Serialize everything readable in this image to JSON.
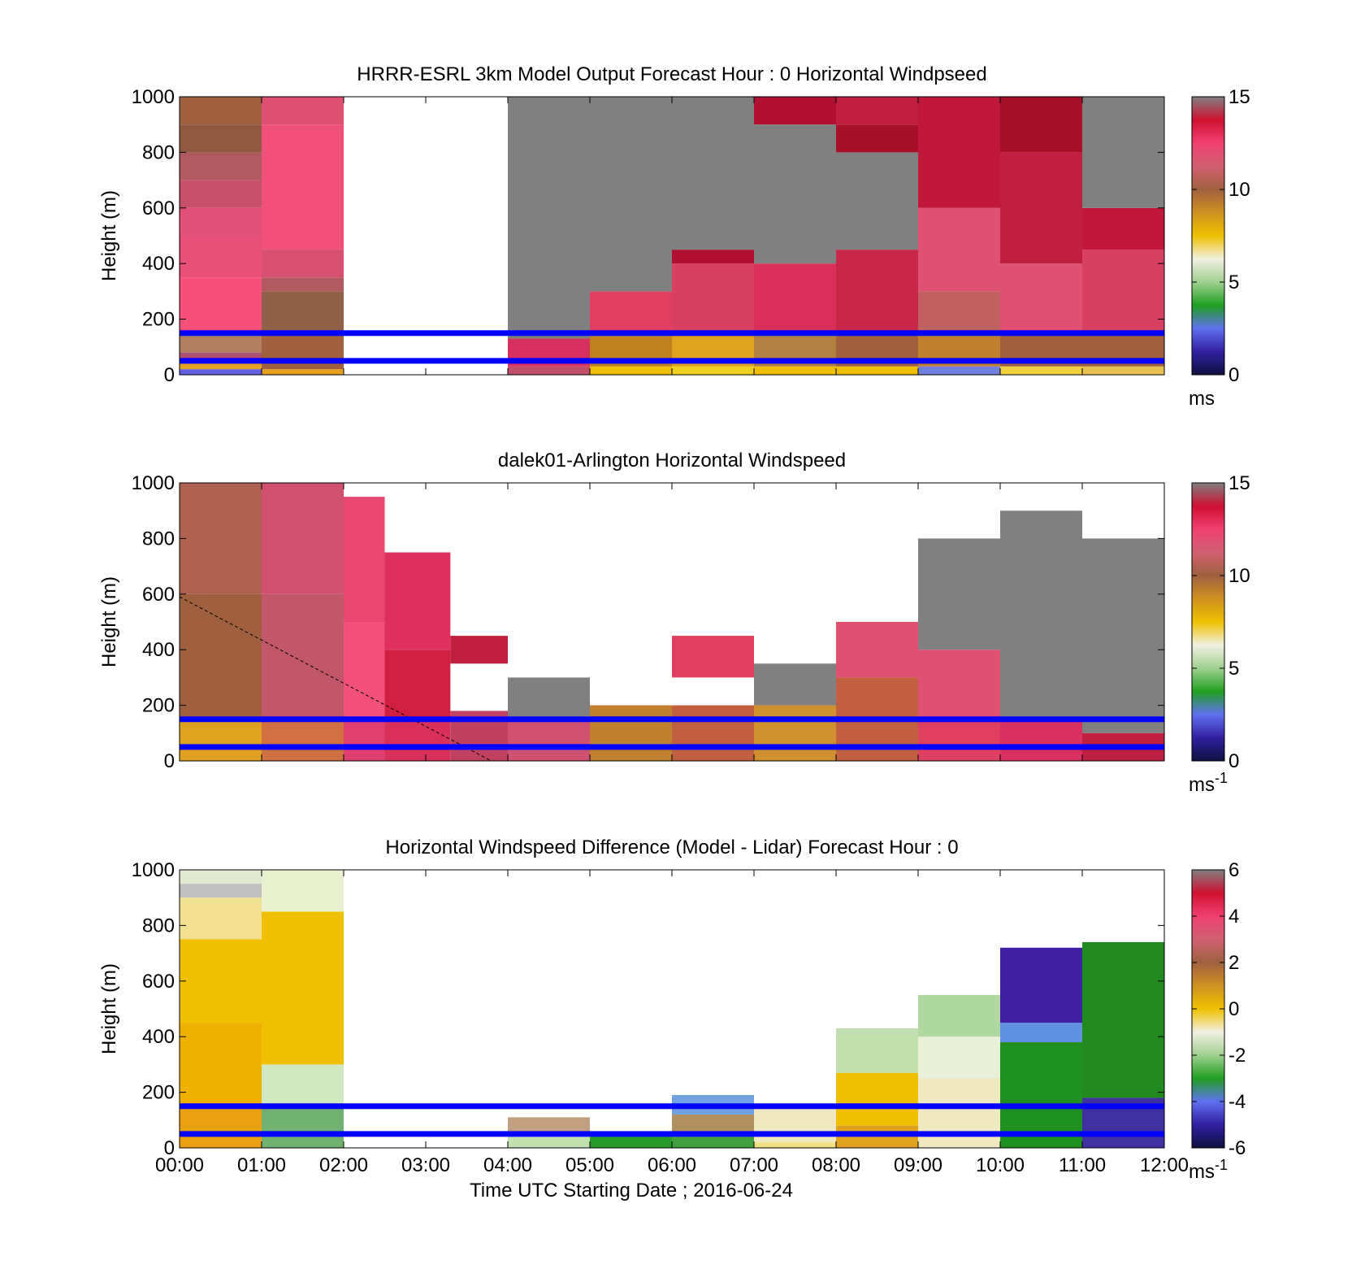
{
  "chart_data": [
    {
      "type": "heatmap",
      "title": "HRRR-ESRL 3km Model Output   Forecast Hour : 0 Horizontal Windpseed",
      "ylabel": "Height (m)",
      "ylim": [
        0,
        1000
      ],
      "yticks": [
        "0",
        "200",
        "400",
        "600",
        "800",
        "1000"
      ],
      "xlim": [
        0,
        12
      ],
      "colorbar": {
        "min": 0,
        "max": 15,
        "ticks": [
          "0",
          "5",
          "10",
          "15"
        ],
        "unit": "ms",
        "unit_sup": ""
      },
      "reference_lines_m": [
        150,
        50
      ],
      "line_color": "#0000ff",
      "columns": [
        {
          "t0": 0,
          "t1": 1,
          "layers": [
            [
              0,
              20,
              "#6060e0"
            ],
            [
              20,
              40,
              "#e6a020"
            ],
            [
              40,
              80,
              "#b05070"
            ],
            [
              80,
              150,
              "#b08060"
            ],
            [
              150,
              350,
              "#f5507a"
            ],
            [
              350,
              500,
              "#e8507a"
            ],
            [
              500,
              600,
              "#e05078"
            ],
            [
              600,
              700,
              "#c85068"
            ],
            [
              700,
              800,
              "#b05a60"
            ],
            [
              800,
              900,
              "#8f5a40"
            ],
            [
              900,
              1000,
              "#a06040"
            ]
          ]
        },
        {
          "t0": 1,
          "t1": 2,
          "layers": [
            [
              0,
              20,
              "#e6a020"
            ],
            [
              20,
              150,
              "#a06040"
            ],
            [
              150,
              300,
              "#906048"
            ],
            [
              300,
              350,
              "#b05a60"
            ],
            [
              350,
              450,
              "#d85070"
            ],
            [
              450,
              900,
              "#f0507a"
            ],
            [
              900,
              1000,
              "#e05070"
            ]
          ]
        },
        {
          "t0": 4,
          "t1": 5,
          "layers": [
            [
              0,
              30,
              "#c0506a"
            ],
            [
              30,
              130,
              "#d83060"
            ],
            [
              130,
              1000,
              "#808080"
            ]
          ]
        },
        {
          "t0": 5,
          "t1": 6,
          "layers": [
            [
              0,
              30,
              "#f0c000"
            ],
            [
              30,
              150,
              "#c08020"
            ],
            [
              150,
              300,
              "#e04060"
            ],
            [
              300,
              1000,
              "#808080"
            ]
          ]
        },
        {
          "t0": 6,
          "t1": 7,
          "layers": [
            [
              0,
              30,
              "#f0d020"
            ],
            [
              30,
              150,
              "#e0a020"
            ],
            [
              150,
              400,
              "#d84060"
            ],
            [
              400,
              450,
              "#b01030"
            ],
            [
              450,
              1000,
              "#808080"
            ]
          ]
        },
        {
          "t0": 7,
          "t1": 8,
          "layers": [
            [
              0,
              30,
              "#f0c000"
            ],
            [
              30,
              150,
              "#b08040"
            ],
            [
              150,
              400,
              "#d83058"
            ],
            [
              400,
              900,
              "#808080"
            ],
            [
              900,
              1000,
              "#b01030"
            ]
          ]
        },
        {
          "t0": 8,
          "t1": 9,
          "layers": [
            [
              0,
              30,
              "#f0c000"
            ],
            [
              30,
              150,
              "#a06040"
            ],
            [
              150,
              450,
              "#c82848"
            ],
            [
              450,
              800,
              "#808080"
            ],
            [
              800,
              900,
              "#a81028"
            ],
            [
              900,
              1000,
              "#c02040"
            ]
          ]
        },
        {
          "t0": 9,
          "t1": 10,
          "layers": [
            [
              0,
              30,
              "#7080e0"
            ],
            [
              30,
              150,
              "#c08030"
            ],
            [
              150,
              300,
              "#c06060"
            ],
            [
              300,
              600,
              "#e05070"
            ],
            [
              600,
              1000,
              "#c01838"
            ]
          ]
        },
        {
          "t0": 10,
          "t1": 11,
          "layers": [
            [
              0,
              30,
              "#f0d040"
            ],
            [
              30,
              150,
              "#a06040"
            ],
            [
              150,
              400,
              "#e05070"
            ],
            [
              400,
              800,
              "#c02040"
            ],
            [
              800,
              1000,
              "#a81028"
            ]
          ]
        },
        {
          "t0": 11,
          "t1": 12,
          "layers": [
            [
              0,
              30,
              "#e6c050"
            ],
            [
              30,
              150,
              "#a06040"
            ],
            [
              150,
              450,
              "#d84060"
            ],
            [
              450,
              600,
              "#c01838"
            ],
            [
              600,
              1000,
              "#808080"
            ]
          ]
        }
      ]
    },
    {
      "type": "heatmap",
      "title": "dalek01-Arlington  Horizontal Windspeed",
      "ylabel": "Height (m)",
      "ylim": [
        0,
        1000
      ],
      "yticks": [
        "0",
        "200",
        "400",
        "600",
        "800",
        "1000"
      ],
      "xlim": [
        0,
        12
      ],
      "colorbar": {
        "min": 0,
        "max": 15,
        "ticks": [
          "0",
          "5",
          "10",
          "15"
        ],
        "unit": "ms",
        "unit_sup": "-1"
      },
      "reference_lines_m": [
        150,
        50
      ],
      "line_color": "#0000ff",
      "dashed_line": [
        [
          0,
          590
        ],
        [
          3.8,
          0
        ]
      ],
      "columns": [
        {
          "t0": 0,
          "t1": 1,
          "layers": [
            [
              0,
              150,
              "#e0a020"
            ],
            [
              150,
              600,
              "#a06040"
            ],
            [
              600,
              1000,
              "#b06050"
            ]
          ]
        },
        {
          "t0": 1,
          "t1": 2,
          "layers": [
            [
              0,
              150,
              "#d07040"
            ],
            [
              150,
              600,
              "#c05868"
            ],
            [
              600,
              1000,
              "#d05070"
            ]
          ]
        },
        {
          "t0": 2,
          "t1": 2.5,
          "layers": [
            [
              0,
              150,
              "#e04070"
            ],
            [
              150,
              500,
              "#f0507a"
            ],
            [
              500,
              950,
              "#e84870"
            ]
          ]
        },
        {
          "t0": 2.5,
          "t1": 3.3,
          "layers": [
            [
              0,
              150,
              "#d83058"
            ],
            [
              150,
              400,
              "#d02040"
            ],
            [
              400,
              750,
              "#e03060"
            ]
          ]
        },
        {
          "t0": 3.3,
          "t1": 4,
          "layers": [
            [
              0,
              180,
              "#c04060"
            ],
            [
              350,
              450,
              "#c02040"
            ]
          ]
        },
        {
          "t0": 4,
          "t1": 5,
          "layers": [
            [
              0,
              150,
              "#d05070"
            ],
            [
              150,
              300,
              "#808080"
            ]
          ]
        },
        {
          "t0": 5,
          "t1": 6,
          "layers": [
            [
              0,
              200,
              "#c08030"
            ]
          ]
        },
        {
          "t0": 6,
          "t1": 7,
          "layers": [
            [
              0,
              200,
              "#c06040"
            ],
            [
              300,
              450,
              "#e04060"
            ]
          ]
        },
        {
          "t0": 7,
          "t1": 8,
          "layers": [
            [
              0,
              200,
              "#d09030"
            ],
            [
              200,
              350,
              "#808080"
            ]
          ]
        },
        {
          "t0": 8,
          "t1": 9,
          "layers": [
            [
              0,
              300,
              "#c06040"
            ],
            [
              300,
              500,
              "#e05070"
            ]
          ]
        },
        {
          "t0": 9,
          "t1": 10,
          "layers": [
            [
              0,
              150,
              "#e04060"
            ],
            [
              150,
              400,
              "#e05070"
            ],
            [
              400,
              800,
              "#808080"
            ]
          ]
        },
        {
          "t0": 10,
          "t1": 11,
          "layers": [
            [
              0,
              150,
              "#d83060"
            ],
            [
              150,
              900,
              "#808080"
            ]
          ]
        },
        {
          "t0": 11,
          "t1": 12,
          "layers": [
            [
              0,
              100,
              "#c02040"
            ],
            [
              100,
              800,
              "#808080"
            ]
          ]
        }
      ]
    },
    {
      "type": "heatmap",
      "title": "Horizontal Windspeed Difference (Model - Lidar) Forecast Hour : 0",
      "ylabel": "Height (m)",
      "xlabel": "Time UTC  Starting Date ; 2016-06-24",
      "ylim": [
        0,
        1000
      ],
      "yticks": [
        "0",
        "200",
        "400",
        "600",
        "800",
        "1000"
      ],
      "xlim": [
        0,
        12
      ],
      "xticks": [
        "00:00",
        "01:00",
        "02:00",
        "03:00",
        "04:00",
        "05:00",
        "06:00",
        "07:00",
        "08:00",
        "09:00",
        "10:00",
        "11:00",
        "12:00"
      ],
      "colorbar": {
        "min": -6,
        "max": 6,
        "ticks": [
          "-6",
          "-4",
          "-2",
          "0",
          "2",
          "4",
          "6"
        ],
        "unit": "ms",
        "unit_sup": "-1"
      },
      "reference_lines_m": [
        150,
        50
      ],
      "line_color": "#0000ff",
      "columns": [
        {
          "t0": 0,
          "t1": 1,
          "layers": [
            [
              0,
              150,
              "#e8a010"
            ],
            [
              150,
              450,
              "#f0b000"
            ],
            [
              450,
              750,
              "#f0c000"
            ],
            [
              750,
              900,
              "#f0e090"
            ],
            [
              900,
              950,
              "#c0c0c0"
            ],
            [
              950,
              1000,
              "#e0e8d0"
            ]
          ]
        },
        {
          "t0": 1,
          "t1": 2,
          "layers": [
            [
              0,
              150,
              "#70b070"
            ],
            [
              150,
              300,
              "#d0e8c0"
            ],
            [
              300,
              850,
              "#f0c000"
            ],
            [
              850,
              1000,
              "#e8f0d0"
            ]
          ]
        },
        {
          "t0": 4,
          "t1": 5,
          "layers": [
            [
              0,
              40,
              "#c0e0b0"
            ],
            [
              40,
              110,
              "#c0a080"
            ]
          ]
        },
        {
          "t0": 5,
          "t1": 6,
          "layers": [
            [
              0,
              60,
              "#2a9a2a"
            ]
          ]
        },
        {
          "t0": 6,
          "t1": 7,
          "layers": [
            [
              0,
              40,
              "#40a040"
            ],
            [
              40,
              120,
              "#b09060"
            ],
            [
              120,
              190,
              "#70a0e0"
            ]
          ]
        },
        {
          "t0": 7,
          "t1": 8,
          "layers": [
            [
              0,
              20,
              "#f0e080"
            ],
            [
              20,
              150,
              "#f0e8c0"
            ]
          ]
        },
        {
          "t0": 8,
          "t1": 9,
          "layers": [
            [
              0,
              80,
              "#e0a020"
            ],
            [
              80,
              270,
              "#f0c000"
            ],
            [
              270,
              430,
              "#c0e0b0"
            ]
          ]
        },
        {
          "t0": 9,
          "t1": 10,
          "layers": [
            [
              0,
              250,
              "#f0e8c0"
            ],
            [
              250,
              400,
              "#e8f0d8"
            ],
            [
              400,
              550,
              "#b0d8a0"
            ]
          ]
        },
        {
          "t0": 10,
          "t1": 11,
          "layers": [
            [
              0,
              380,
              "#209020"
            ],
            [
              380,
              450,
              "#6090e0"
            ],
            [
              450,
              720,
              "#4020a0"
            ]
          ]
        },
        {
          "t0": 11,
          "t1": 12,
          "layers": [
            [
              0,
              180,
              "#4030a0"
            ],
            [
              180,
              740,
              "#208a20"
            ]
          ]
        }
      ]
    }
  ]
}
